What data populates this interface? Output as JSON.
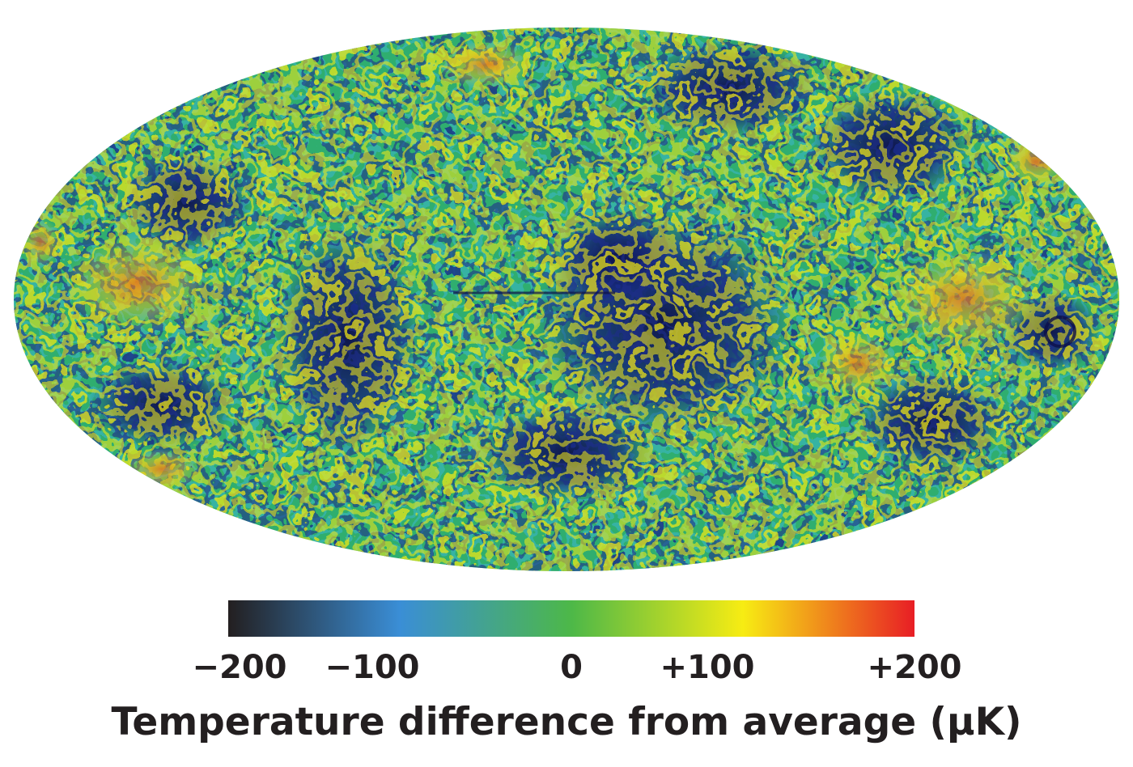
{
  "figure": {
    "colorbar": {
      "ticks": [
        "−200",
        "−100",
        "0",
        "+100",
        "+200"
      ],
      "tick_values": [
        -200,
        -100,
        0,
        100,
        200
      ],
      "range": [
        -200,
        200
      ],
      "colors": [
        "#231f20",
        "#3a8ed6",
        "#4db848",
        "#f7ec13",
        "#e81e25"
      ],
      "label": "Temperature difference from average (μK)"
    }
  }
}
